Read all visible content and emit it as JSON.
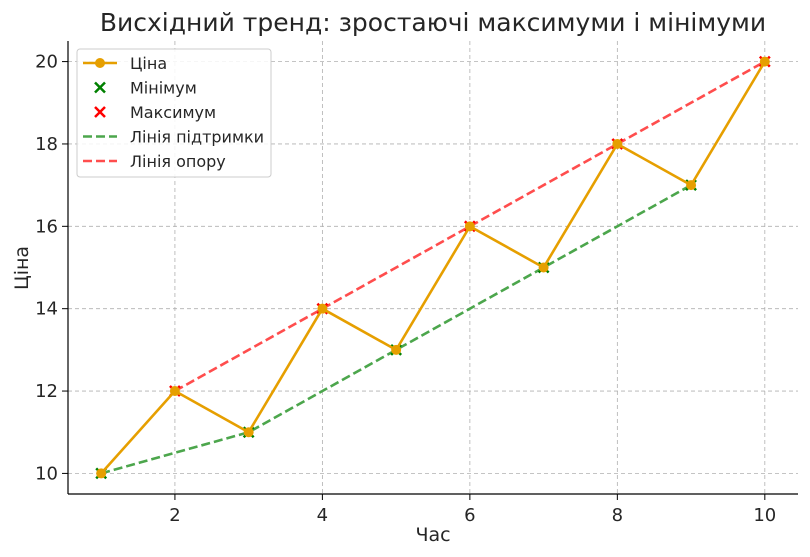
{
  "chart_data": {
    "type": "line",
    "title": "Висхідний тренд: зростаючі максимуми і мінімуми",
    "xlabel": "Час",
    "ylabel": "Ціна",
    "xlim": [
      0.55,
      10.45
    ],
    "ylim": [
      9.5,
      20.5
    ],
    "xticks": [
      2,
      4,
      6,
      8,
      10
    ],
    "yticks": [
      10,
      12,
      14,
      16,
      18,
      20
    ],
    "grid": true,
    "legend_position": "top-left",
    "series": [
      {
        "name": "Ціна",
        "kind": "line-marker",
        "color": "#E69F00",
        "x": [
          1,
          2,
          3,
          4,
          5,
          6,
          7,
          8,
          9,
          10
        ],
        "y": [
          10,
          12,
          11,
          14,
          13,
          16,
          15,
          18,
          17,
          20
        ]
      },
      {
        "name": "Мінімум",
        "kind": "scatter-x",
        "color": "#008000",
        "x": [
          1,
          3,
          5,
          7,
          9
        ],
        "y": [
          10,
          11,
          13,
          15,
          17
        ]
      },
      {
        "name": "Максимум",
        "kind": "scatter-x",
        "color": "#FF0000",
        "x": [
          2,
          4,
          6,
          8,
          10
        ],
        "y": [
          12,
          14,
          16,
          18,
          20
        ]
      },
      {
        "name": "Лінія підтримки",
        "kind": "dashed",
        "color": "#4CA64C",
        "x": [
          1,
          3,
          5,
          7,
          9
        ],
        "y": [
          10,
          11,
          13,
          15,
          17
        ]
      },
      {
        "name": "Лінія опору",
        "kind": "dashed",
        "color": "#FF4D4D",
        "x": [
          2,
          4,
          6,
          8,
          10
        ],
        "y": [
          12,
          14,
          16,
          18,
          20
        ]
      }
    ]
  }
}
